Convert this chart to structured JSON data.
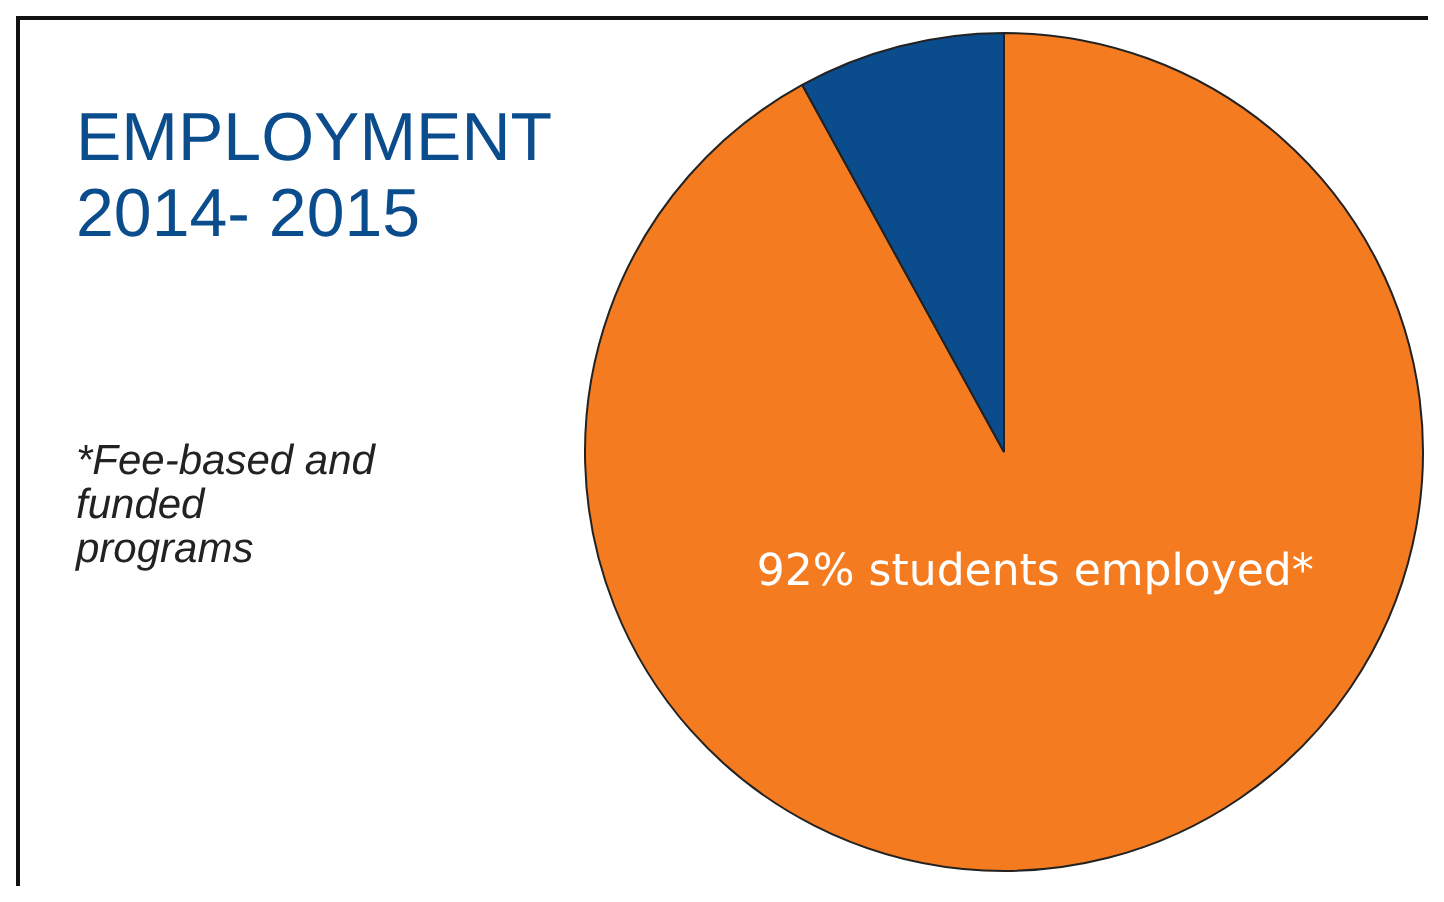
{
  "chart_data": {
    "type": "pie",
    "title": "EMPLOYMENT\n2014- 2015",
    "categories": [
      null,
      null
    ],
    "values": [
      92,
      8
    ],
    "colors": [
      "#f47b20",
      "#0b4c8c"
    ],
    "value_labels": [
      "92% students employed*",
      null
    ],
    "annotations": [
      "*Fee-based and funded programs"
    ],
    "legend": false
  }
}
